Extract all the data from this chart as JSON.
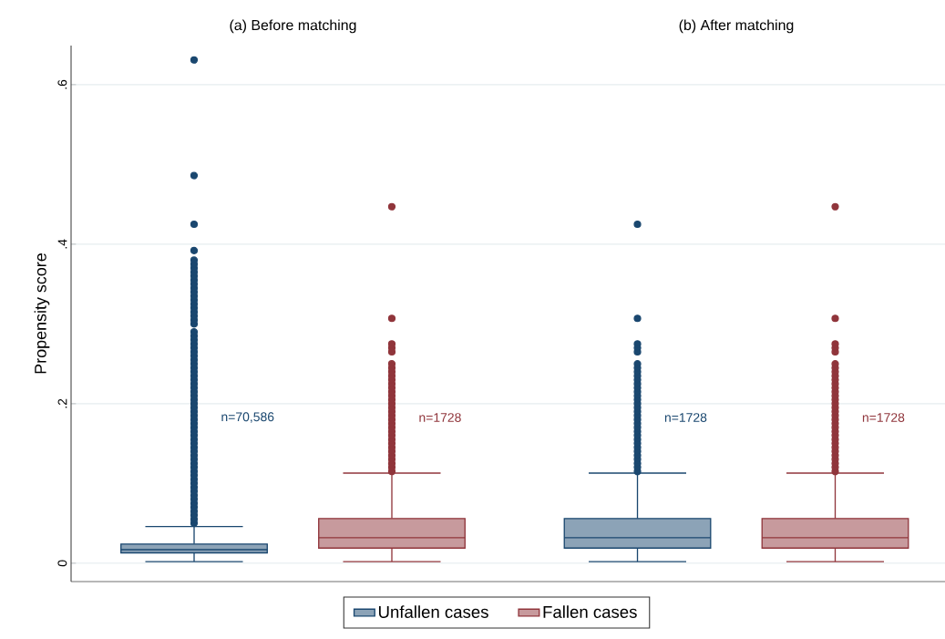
{
  "chart_data": {
    "type": "box",
    "ylabel": "Propensity score",
    "categories": [
      "(a) Before matching",
      "(b) After matching"
    ],
    "series": [
      {
        "name": "Unfallen cases",
        "color": "#1a476f",
        "boxes": [
          {
            "low": 0.002,
            "q1": 0.013,
            "median": 0.017,
            "q3": 0.024,
            "high": 0.046,
            "outliers": [
              0.05,
              0.055,
              0.06,
              0.065,
              0.07,
              0.075,
              0.08,
              0.085,
              0.09,
              0.095,
              0.1,
              0.105,
              0.11,
              0.115,
              0.12,
              0.125,
              0.13,
              0.135,
              0.14,
              0.145,
              0.15,
              0.155,
              0.16,
              0.165,
              0.17,
              0.175,
              0.18,
              0.185,
              0.19,
              0.195,
              0.2,
              0.205,
              0.21,
              0.215,
              0.22,
              0.225,
              0.23,
              0.235,
              0.24,
              0.245,
              0.25,
              0.255,
              0.26,
              0.265,
              0.27,
              0.275,
              0.28,
              0.285,
              0.29,
              0.3,
              0.305,
              0.31,
              0.315,
              0.32,
              0.325,
              0.33,
              0.335,
              0.34,
              0.345,
              0.35,
              0.355,
              0.36,
              0.365,
              0.37,
              0.375,
              0.38,
              0.392,
              0.425,
              0.486,
              0.631
            ]
          },
          {
            "low": 0.002,
            "q1": 0.019,
            "median": 0.032,
            "q3": 0.056,
            "high": 0.113,
            "outliers": [
              0.115,
              0.12,
              0.125,
              0.13,
              0.135,
              0.14,
              0.145,
              0.15,
              0.155,
              0.16,
              0.165,
              0.17,
              0.175,
              0.18,
              0.185,
              0.19,
              0.195,
              0.2,
              0.205,
              0.21,
              0.215,
              0.22,
              0.225,
              0.23,
              0.235,
              0.24,
              0.245,
              0.25,
              0.265,
              0.27,
              0.275,
              0.307,
              0.425
            ]
          }
        ]
      },
      {
        "name": "Fallen cases",
        "color": "#90353b",
        "boxes": [
          {
            "low": 0.002,
            "q1": 0.019,
            "median": 0.032,
            "q3": 0.056,
            "high": 0.113,
            "outliers": [
              0.115,
              0.12,
              0.125,
              0.13,
              0.135,
              0.14,
              0.145,
              0.15,
              0.155,
              0.16,
              0.165,
              0.17,
              0.175,
              0.18,
              0.185,
              0.19,
              0.195,
              0.2,
              0.205,
              0.21,
              0.215,
              0.22,
              0.225,
              0.23,
              0.235,
              0.24,
              0.245,
              0.25,
              0.265,
              0.27,
              0.275,
              0.307,
              0.447
            ]
          },
          {
            "low": 0.002,
            "q1": 0.019,
            "median": 0.032,
            "q3": 0.056,
            "high": 0.113,
            "outliers": [
              0.115,
              0.12,
              0.125,
              0.13,
              0.135,
              0.14,
              0.145,
              0.15,
              0.155,
              0.16,
              0.165,
              0.17,
              0.175,
              0.18,
              0.185,
              0.19,
              0.195,
              0.2,
              0.205,
              0.21,
              0.215,
              0.22,
              0.225,
              0.23,
              0.235,
              0.24,
              0.245,
              0.25,
              0.265,
              0.27,
              0.275,
              0.307,
              0.447
            ]
          }
        ]
      }
    ],
    "annotations": [
      "n=70,586",
      "n=1728",
      "n=1728",
      "n=1728"
    ],
    "ylim": [
      -0.023,
      0.649
    ],
    "yticks": [
      {
        "value": 0,
        "label": "0"
      },
      {
        "value": 0.2,
        "label": ".2"
      },
      {
        "value": 0.4,
        "label": ".4"
      },
      {
        "value": 0.6,
        "label": ".6"
      }
    ],
    "grid": "y",
    "marker": "circle",
    "legend": "bottom"
  }
}
